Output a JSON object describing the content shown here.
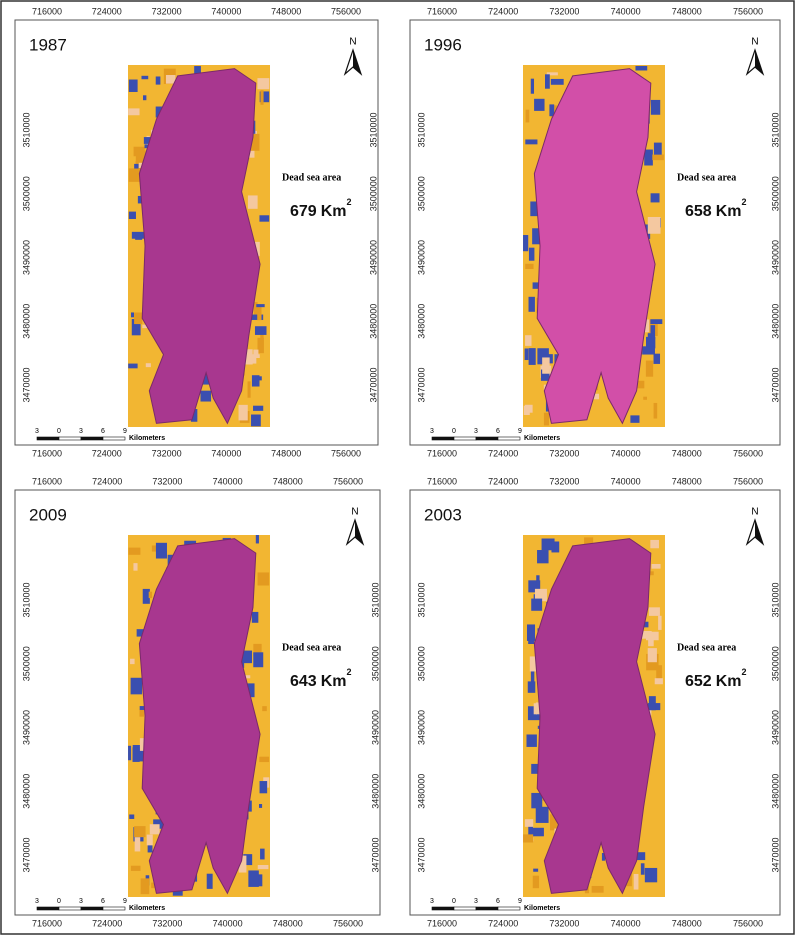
{
  "x_ticks": [
    "716000",
    "724000",
    "732000",
    "740000",
    "748000",
    "756000"
  ],
  "y_ticks": [
    "3510000",
    "3500000",
    "3490000",
    "3480000",
    "3470000"
  ],
  "area_caption": "Dead sea area",
  "area_unit": "Km",
  "area_exponent": "2",
  "north_label": "N",
  "scale_labels": [
    "3",
    "0",
    "3",
    "6",
    "9"
  ],
  "scale_unit": "Kilometers",
  "panels": [
    {
      "year": "1987",
      "area": "679"
    },
    {
      "year": "1996",
      "area": "658"
    },
    {
      "year": "2009",
      "area": "643"
    },
    {
      "year": "2003",
      "area": "652"
    }
  ]
}
